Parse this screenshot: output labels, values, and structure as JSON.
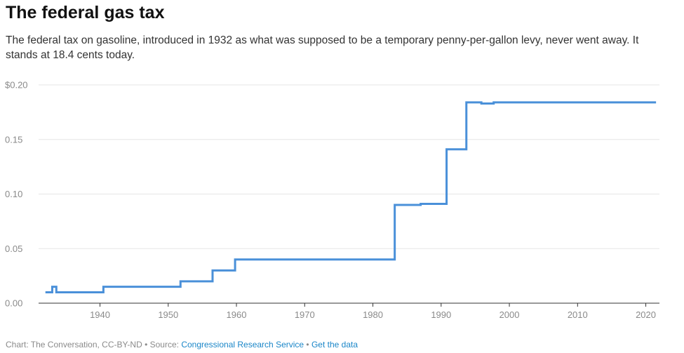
{
  "header": {
    "title": "The federal gas tax",
    "subtitle": "The federal tax on gasoline, introduced in 1932 as what was supposed to be a temporary penny-per-gallon levy, never went away. It stands at 18.4 cents today."
  },
  "footer": {
    "credit": "Chart: The Conversation, CC-BY-ND",
    "separator": " • ",
    "source_prefix": "Source: ",
    "source_link": "Congressional Research Service",
    "get_data_link": "Get the data"
  },
  "colors": {
    "line": "#4a90d9",
    "grid": "#e6e6e6",
    "axis": "#333333",
    "tick_text": "#8a8a8a",
    "link": "#1a86c8"
  },
  "chart_data": {
    "type": "line",
    "step": true,
    "title": "The federal gas tax",
    "xlabel": "",
    "ylabel": "",
    "xlim": [
      1931,
      2022
    ],
    "ylim": [
      0,
      0.2
    ],
    "x_ticks": [
      1940,
      1950,
      1960,
      1970,
      1980,
      1990,
      2000,
      2010,
      2020
    ],
    "y_ticks": [
      0,
      0.05,
      0.1,
      0.15,
      0.2
    ],
    "y_tick_labels": [
      "0.00",
      "0.05",
      "0.10",
      "0.15",
      "$0.20"
    ],
    "grid": true,
    "legend": "none",
    "series": [
      {
        "points": [
          [
            1932.0,
            0.01
          ],
          [
            1933.0,
            0.01
          ],
          [
            1933.0,
            0.015
          ],
          [
            1933.6,
            0.015
          ],
          [
            1933.6,
            0.01
          ],
          [
            1940.5,
            0.01
          ],
          [
            1940.5,
            0.015
          ],
          [
            1951.8,
            0.015
          ],
          [
            1951.8,
            0.02
          ],
          [
            1956.5,
            0.02
          ],
          [
            1956.5,
            0.03
          ],
          [
            1959.8,
            0.03
          ],
          [
            1959.8,
            0.04
          ],
          [
            1983.2,
            0.04
          ],
          [
            1983.2,
            0.09
          ],
          [
            1987.0,
            0.09
          ],
          [
            1987.0,
            0.091
          ],
          [
            1990.8,
            0.091
          ],
          [
            1990.8,
            0.141
          ],
          [
            1993.7,
            0.141
          ],
          [
            1993.7,
            0.184
          ],
          [
            1995.9,
            0.184
          ],
          [
            1995.9,
            0.183
          ],
          [
            1997.7,
            0.183
          ],
          [
            1997.7,
            0.184
          ],
          [
            2021.5,
            0.184
          ]
        ]
      }
    ]
  }
}
